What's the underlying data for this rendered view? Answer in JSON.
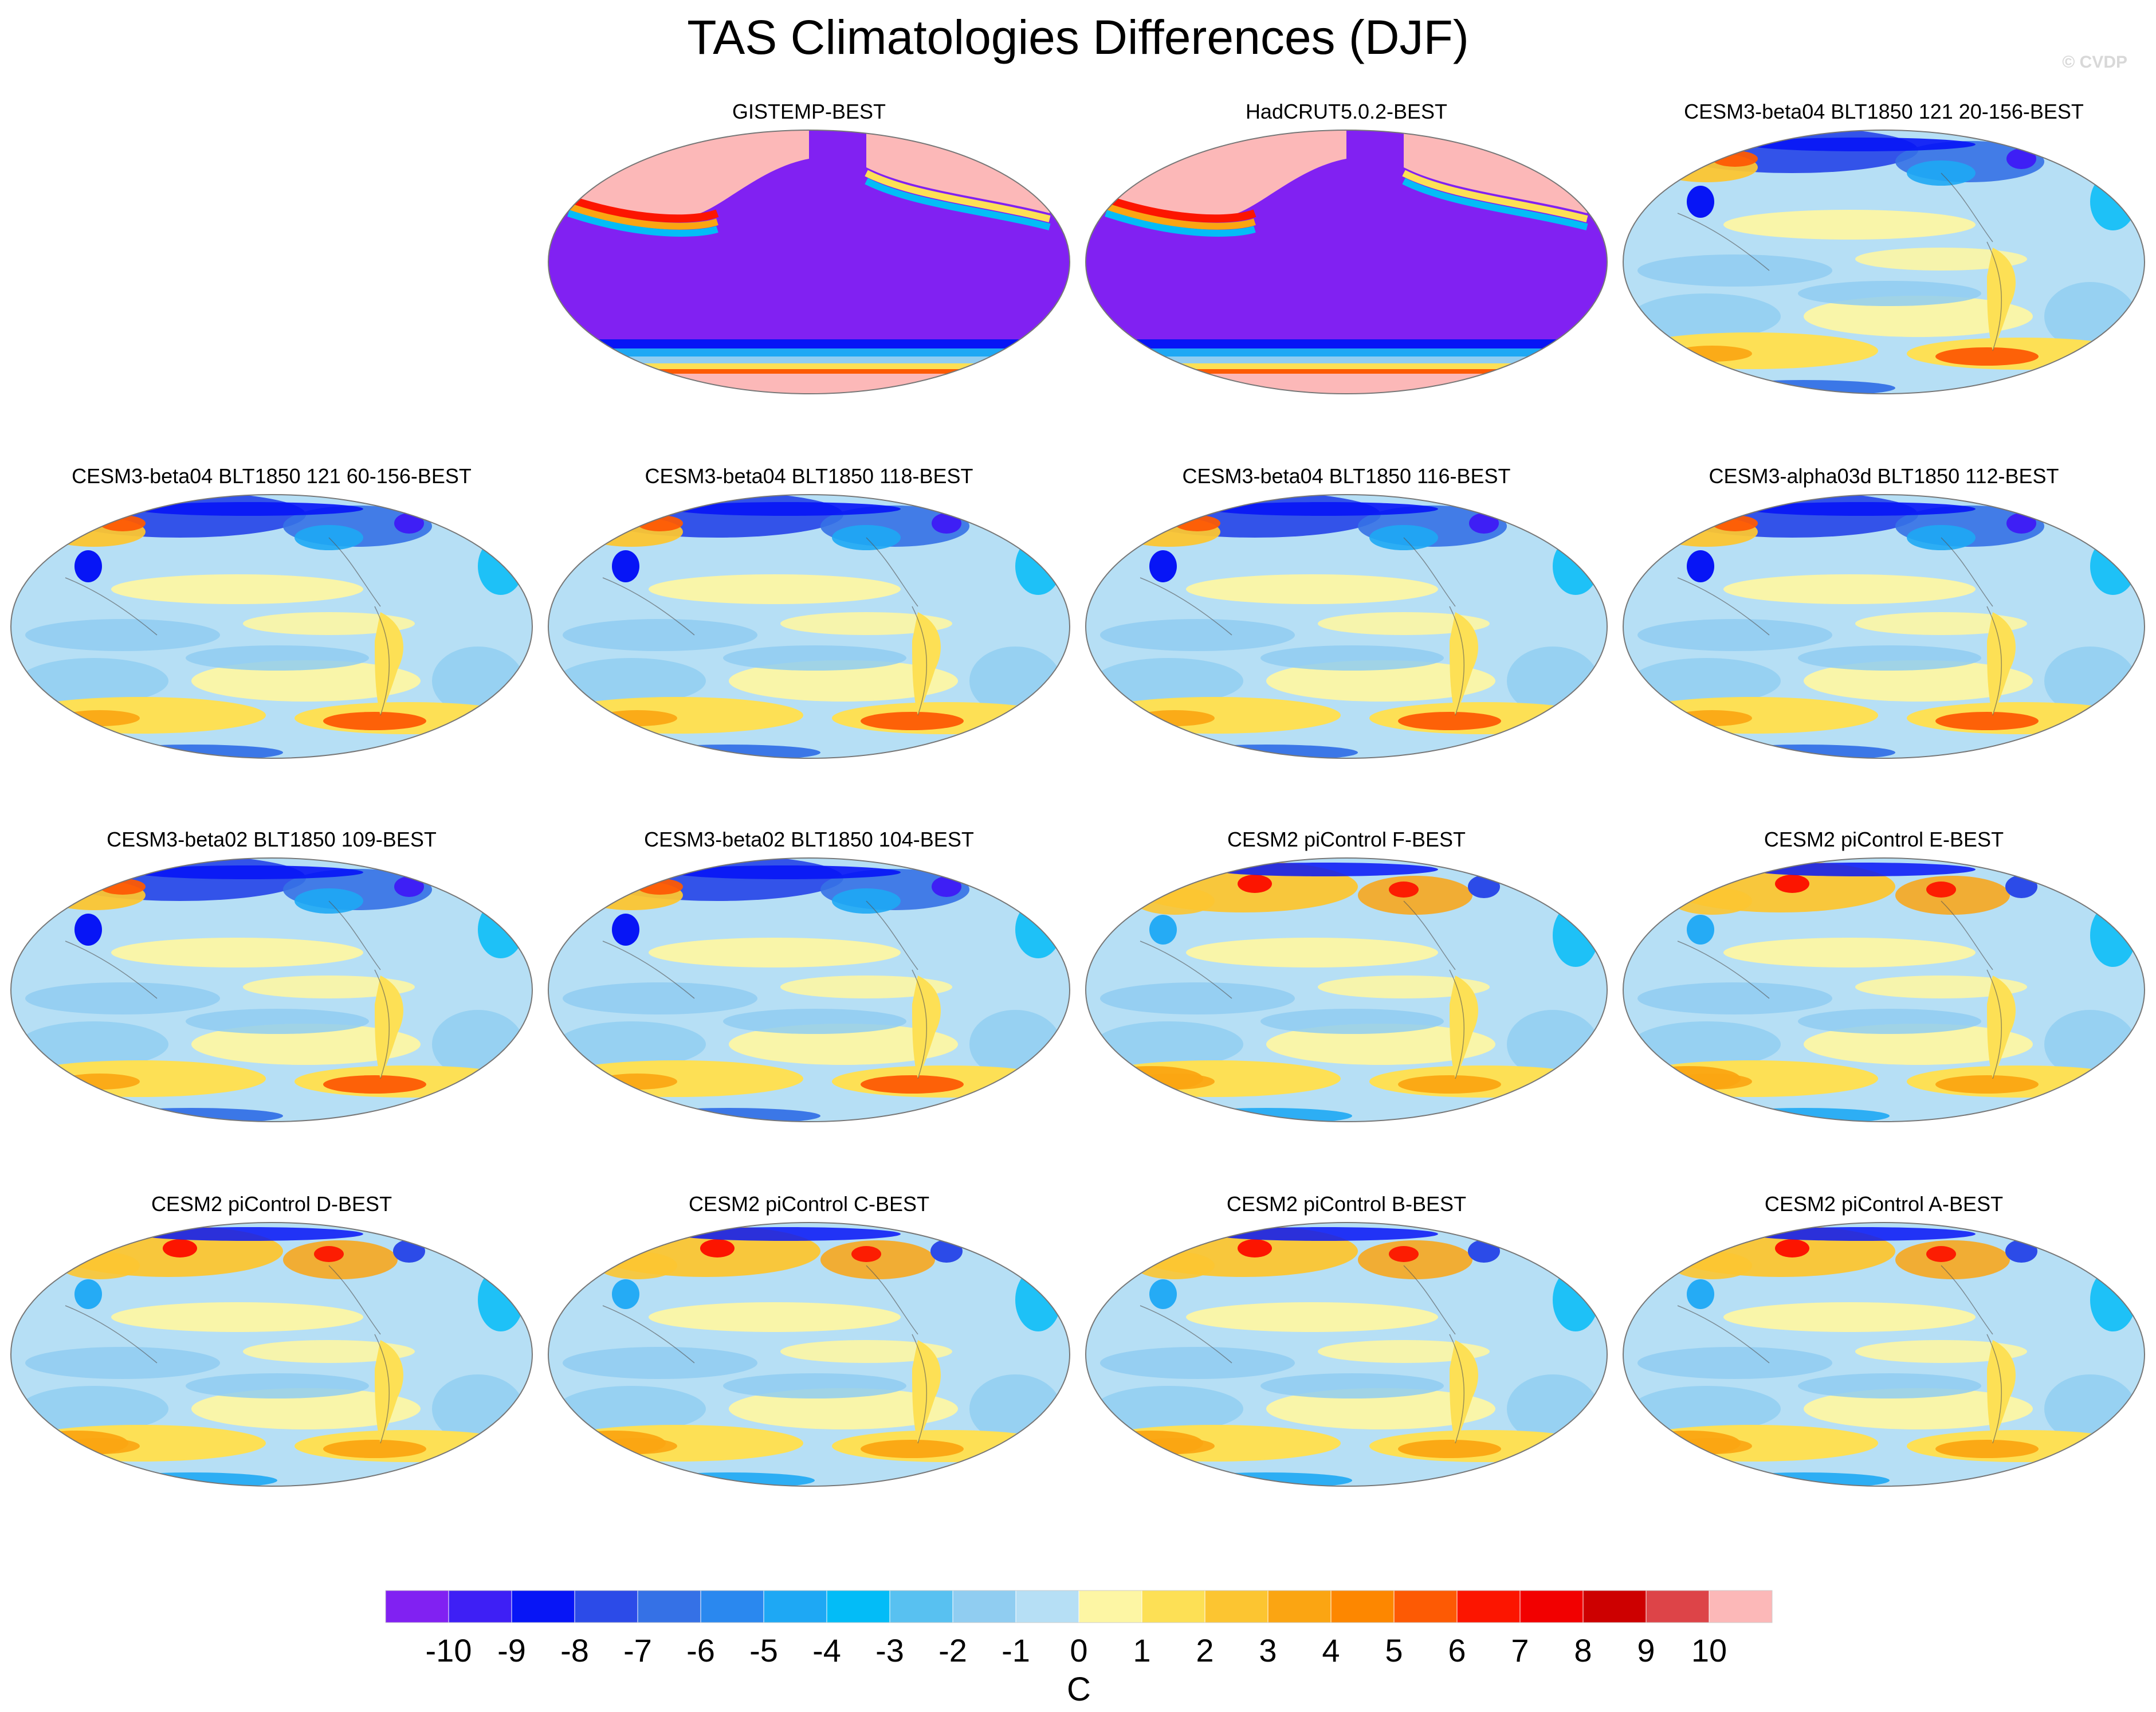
{
  "title": "TAS Climatologies Differences (DJF)",
  "watermark": "© CVDP",
  "chart_data": {
    "type": "heatmap",
    "projection": "Robinson (global, Pacific-centred)",
    "season": "DJF",
    "panels": [
      {
        "title": "GISTEMP-BEST",
        "style": "observational"
      },
      {
        "title": "HadCRUT5.0.2-BEST",
        "style": "observational"
      },
      {
        "title": "CESM3-beta04 BLT1850 121 20-156-BEST",
        "style": "cold"
      },
      {
        "title": "CESM3-beta04 BLT1850 121 60-156-BEST",
        "style": "cold"
      },
      {
        "title": "CESM3-beta04 BLT1850 118-BEST",
        "style": "cold"
      },
      {
        "title": "CESM3-beta04 BLT1850 116-BEST",
        "style": "cold"
      },
      {
        "title": "CESM3-alpha03d BLT1850 112-BEST",
        "style": "cold"
      },
      {
        "title": "CESM3-beta02 BLT1850 109-BEST",
        "style": "cold"
      },
      {
        "title": "CESM3-beta02 BLT1850 104-BEST",
        "style": "cold"
      },
      {
        "title": "CESM2 piControl F-BEST",
        "style": "warm"
      },
      {
        "title": "CESM2 piControl E-BEST",
        "style": "warm"
      },
      {
        "title": "CESM2 piControl D-BEST",
        "style": "warm"
      },
      {
        "title": "CESM2 piControl C-BEST",
        "style": "warm"
      },
      {
        "title": "CESM2 piControl B-BEST",
        "style": "warm"
      },
      {
        "title": "CESM2 piControl A-BEST",
        "style": "warm"
      }
    ],
    "colorbar": {
      "unit": "C",
      "ticks": [
        "-10",
        "-9",
        "-8",
        "-7",
        "-6",
        "-5",
        "-4",
        "-3",
        "-2",
        "-1",
        "0",
        "1",
        "2",
        "3",
        "4",
        "5",
        "6",
        "7",
        "8",
        "9",
        "10"
      ],
      "colors": [
        "#8121f2",
        "#3e1ff5",
        "#0715f6",
        "#2c4be8",
        "#3571e6",
        "#2a88ef",
        "#1ea8f4",
        "#03bcf7",
        "#58c1f1",
        "#90cdf1",
        "#b6dff5",
        "#fdf6a4",
        "#fde055",
        "#fcc531",
        "#fba512",
        "#fd8700",
        "#fd5a04",
        "#fc1500",
        "#f20000",
        "#cd0000",
        "#dd4448",
        "#fcb8b8"
      ]
    }
  }
}
